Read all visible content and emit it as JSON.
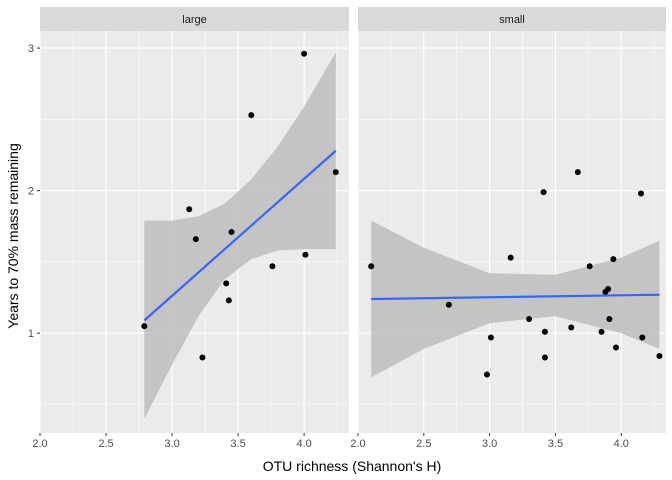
{
  "chart_data": {
    "type": "scatter",
    "xlabel": "OTU richness (Shannon's H)",
    "ylabel": "Years to 70% mass remaining",
    "x_ticks": [
      2.0,
      2.5,
      3.0,
      3.5,
      4.0
    ],
    "x_tick_labels": [
      "2.0",
      "2.5",
      "3.0",
      "3.5",
      "4.0"
    ],
    "y_ticks": [
      1,
      2,
      3
    ],
    "y_tick_labels": [
      "1",
      "2",
      "3"
    ],
    "xlim": [
      2.0,
      4.34
    ],
    "ylim": [
      0.3,
      3.12
    ],
    "grid": true,
    "colors": {
      "panel_bg": "#ebebeb",
      "strip_bg": "#d9d9d9",
      "grid": "#ffffff",
      "point": "#000000",
      "line": "#3366ff",
      "ribbon": "#bdbdbd"
    },
    "facets": [
      {
        "label": "large",
        "points": [
          {
            "x": 2.79,
            "y": 1.05
          },
          {
            "x": 3.13,
            "y": 1.87
          },
          {
            "x": 3.18,
            "y": 1.66
          },
          {
            "x": 3.23,
            "y": 0.83
          },
          {
            "x": 3.41,
            "y": 1.35
          },
          {
            "x": 3.43,
            "y": 1.23
          },
          {
            "x": 3.45,
            "y": 1.71
          },
          {
            "x": 3.6,
            "y": 2.53
          },
          {
            "x": 3.76,
            "y": 1.47
          },
          {
            "x": 4.0,
            "y": 2.96
          },
          {
            "x": 4.01,
            "y": 1.55
          },
          {
            "x": 4.24,
            "y": 2.13
          }
        ],
        "fit": {
          "x": [
            2.79,
            4.24
          ],
          "y": [
            1.09,
            2.28
          ]
        },
        "ribbon": {
          "x": [
            2.79,
            3.0,
            3.2,
            3.4,
            3.6,
            3.8,
            4.0,
            4.24
          ],
          "lower": [
            0.4,
            0.78,
            1.12,
            1.38,
            1.52,
            1.58,
            1.59,
            1.59
          ],
          "upper": [
            1.79,
            1.79,
            1.82,
            1.91,
            2.08,
            2.31,
            2.59,
            2.97
          ]
        }
      },
      {
        "label": "small",
        "points": [
          {
            "x": 2.1,
            "y": 1.47
          },
          {
            "x": 2.69,
            "y": 1.2
          },
          {
            "x": 2.98,
            "y": 0.71
          },
          {
            "x": 3.01,
            "y": 0.97
          },
          {
            "x": 3.16,
            "y": 1.53
          },
          {
            "x": 3.3,
            "y": 1.1
          },
          {
            "x": 3.41,
            "y": 1.99
          },
          {
            "x": 3.42,
            "y": 1.01
          },
          {
            "x": 3.42,
            "y": 0.83
          },
          {
            "x": 3.62,
            "y": 1.04
          },
          {
            "x": 3.67,
            "y": 2.13
          },
          {
            "x": 3.76,
            "y": 1.47
          },
          {
            "x": 3.85,
            "y": 1.01
          },
          {
            "x": 3.88,
            "y": 1.29
          },
          {
            "x": 3.9,
            "y": 1.31
          },
          {
            "x": 3.91,
            "y": 1.1
          },
          {
            "x": 3.94,
            "y": 1.52
          },
          {
            "x": 3.96,
            "y": 0.9
          },
          {
            "x": 4.15,
            "y": 1.98
          },
          {
            "x": 4.16,
            "y": 0.97
          },
          {
            "x": 4.29,
            "y": 0.84
          }
        ],
        "fit": {
          "x": [
            2.1,
            4.29
          ],
          "y": [
            1.24,
            1.27
          ]
        },
        "ribbon": {
          "x": [
            2.1,
            2.5,
            3.0,
            3.5,
            4.0,
            4.29
          ],
          "lower": [
            0.69,
            0.89,
            1.07,
            1.12,
            1.0,
            0.89
          ],
          "upper": [
            1.79,
            1.6,
            1.42,
            1.41,
            1.53,
            1.65
          ]
        }
      }
    ]
  }
}
